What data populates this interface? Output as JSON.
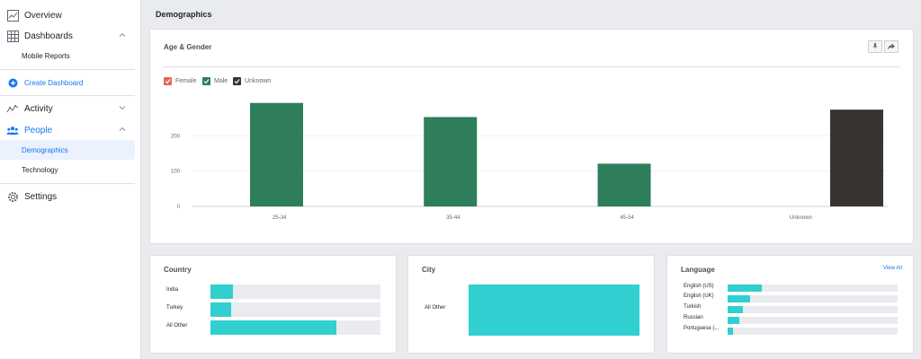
{
  "sidebar": {
    "overview": "Overview",
    "dashboards": "Dashboards",
    "mobile_reports": "Mobile Reports",
    "create_dashboard": "Create Dashboard",
    "activity": "Activity",
    "people": "People",
    "demographics": "Demographics",
    "technology": "Technology",
    "settings": "Settings"
  },
  "header": {
    "title": "Demographics"
  },
  "age_gender": {
    "title": "Age & Gender",
    "legend": [
      {
        "label": "Female",
        "color": "#e0674a"
      },
      {
        "label": "Male",
        "color": "#2e7d5b"
      },
      {
        "label": "Unknown",
        "color": "#383432"
      }
    ]
  },
  "chart_data": {
    "type": "bar",
    "categories": [
      "25-34",
      "35-44",
      "45-54",
      "Unknown"
    ],
    "series": [
      {
        "name": "Female",
        "values": [
          0,
          0,
          0,
          0
        ]
      },
      {
        "name": "Male",
        "values": [
          293,
          253,
          121,
          0
        ]
      },
      {
        "name": "Unknown",
        "values": [
          0,
          0,
          0,
          274
        ]
      }
    ],
    "yticks": [
      0,
      100,
      200
    ],
    "ylim": [
      0,
      310
    ],
    "colors": {
      "Female": "#e0674a",
      "Male": "#2e7d5b",
      "Unknown": "#383432"
    }
  },
  "country": {
    "title": "Country",
    "rows": [
      {
        "label": "India",
        "frac": 0.13
      },
      {
        "label": "Turkey",
        "frac": 0.12
      },
      {
        "label": "All Other",
        "frac": 0.74
      }
    ]
  },
  "city": {
    "title": "City",
    "rows": [
      {
        "label": "All Other",
        "frac": 1.0
      }
    ]
  },
  "language": {
    "title": "Language",
    "view_all": "View All",
    "rows": [
      {
        "label": "English (US)",
        "frac": 0.2
      },
      {
        "label": "English (UK)",
        "frac": 0.13
      },
      {
        "label": "Turkish",
        "frac": 0.09
      },
      {
        "label": "Russian",
        "frac": 0.07
      },
      {
        "label": "Portuguese (...",
        "frac": 0.03
      }
    ]
  },
  "colors": {
    "accent": "#1877f2",
    "bar": "#31cfcf"
  }
}
